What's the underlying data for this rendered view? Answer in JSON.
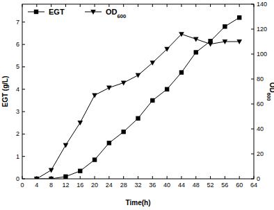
{
  "chart_data": {
    "type": "line",
    "xlabel": "Time(h)",
    "ylabel": "EGT (g/L)",
    "y2label": "OD600",
    "x": [
      4,
      8,
      12,
      16,
      20,
      24,
      28,
      32,
      36,
      40,
      44,
      48,
      52,
      56,
      60
    ],
    "series": [
      {
        "name": "EGT",
        "color": "#000000",
        "marker": "square",
        "line_style": "solid",
        "values": [
          0,
          0,
          0.1,
          0.35,
          0.85,
          1.6,
          2.1,
          2.7,
          3.5,
          4.0,
          4.75,
          5.65,
          6.15,
          6.8,
          7.2
        ]
      },
      {
        "name": "OD600",
        "color": "#000000",
        "marker": "triangle-down",
        "line_style": "solid",
        "axis": "y2",
        "values": [
          0,
          7,
          27,
          45,
          67,
          73,
          77,
          83,
          93,
          104,
          116,
          112,
          108,
          110,
          110
        ]
      }
    ],
    "xlim": [
      0,
      64
    ],
    "xticks": [
      0,
      4,
      8,
      12,
      16,
      20,
      24,
      28,
      32,
      36,
      40,
      44,
      48,
      52,
      56,
      60,
      64
    ],
    "ylim": [
      0,
      7.8
    ],
    "yticks": [
      0,
      1,
      2,
      3,
      4,
      5,
      6,
      7
    ],
    "y2lim": [
      0,
      140
    ],
    "y2ticks": [
      0,
      20,
      40,
      60,
      80,
      100,
      120,
      140
    ],
    "legend": "upper left",
    "grid": false
  }
}
